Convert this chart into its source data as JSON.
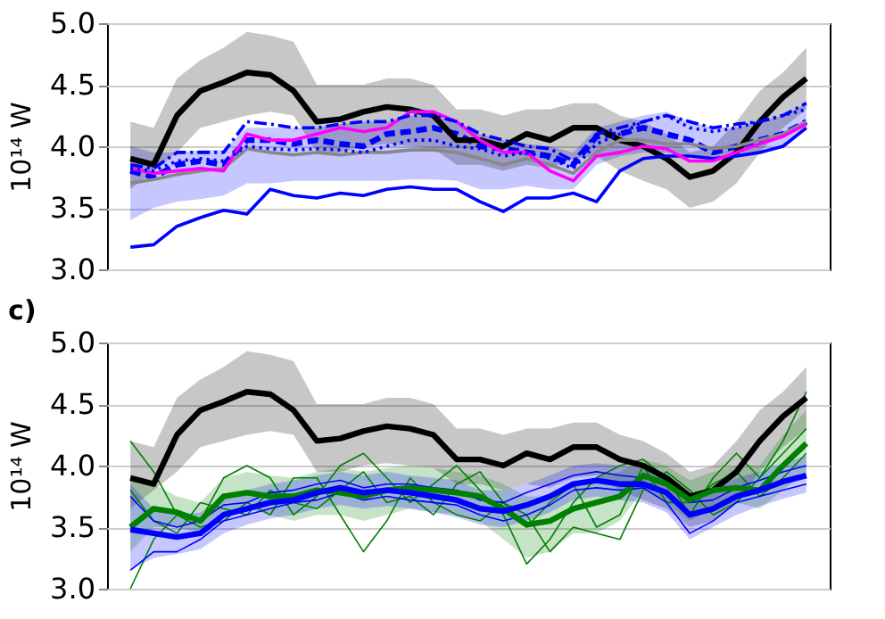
{
  "chart_data": [
    {
      "type": "line",
      "ylabel": "10¹⁴ W",
      "ylim": [
        3.0,
        5.0
      ],
      "yticks": [
        {
          "value": 3.0,
          "label": "3.0"
        },
        {
          "value": 3.5,
          "label": "3.5"
        },
        {
          "value": 4.0,
          "label": "4.0"
        },
        {
          "value": 4.5,
          "label": "4.5"
        },
        {
          "value": 5.0,
          "label": "5.0"
        }
      ],
      "grid": "y",
      "tick_labels": "y",
      "categories": [
        null,
        null,
        null,
        null,
        null,
        null,
        null,
        null,
        null,
        null,
        null,
        null,
        null,
        null,
        null,
        null,
        null,
        null,
        null,
        null,
        null,
        null,
        null,
        null,
        null,
        null,
        null,
        null,
        null,
        null
      ],
      "series": [
        {
          "type": "line",
          "color": "#0000ff",
          "line_style": "dashed",
          "values": [
            3.8,
            3.75,
            3.85,
            3.88,
            3.85,
            4.05,
            4.05,
            4.02,
            4.05,
            4.02,
            4.0,
            4.1,
            4.12,
            4.15,
            4.1,
            4.0,
            3.98,
            3.95,
            3.92,
            3.85,
            4.08,
            4.1,
            4.15,
            4.1,
            4.05,
            3.95,
            4.0,
            4.05,
            4.1,
            4.2
          ],
          "lower": [
            3.4,
            3.5,
            3.55,
            3.57,
            3.6,
            3.7,
            3.7,
            3.72,
            3.72,
            3.72,
            3.72,
            3.72,
            3.73,
            3.73,
            3.72,
            3.65,
            3.65,
            3.68,
            3.65,
            3.65,
            3.85,
            3.92,
            3.95,
            3.95,
            3.92,
            3.9,
            3.92,
            3.95,
            4.0,
            4.15
          ],
          "upper": [
            4.0,
            3.95,
            3.95,
            3.97,
            3.97,
            4.15,
            4.15,
            4.15,
            4.15,
            4.18,
            4.2,
            4.2,
            4.25,
            4.25,
            4.2,
            4.1,
            4.05,
            4.02,
            4.0,
            3.95,
            4.15,
            4.2,
            4.25,
            4.28,
            4.2,
            4.15,
            4.15,
            4.2,
            4.25,
            4.35
          ]
        },
        {
          "type": "line",
          "color": "#000000",
          "line_style": "solid",
          "values": [
            3.9,
            3.85,
            4.25,
            4.45,
            4.52,
            4.6,
            4.58,
            4.45,
            4.2,
            4.22,
            4.28,
            4.32,
            4.3,
            4.25,
            4.05,
            4.05,
            4.0,
            4.1,
            4.05,
            4.15,
            4.15,
            4.05,
            4.0,
            3.9,
            3.75,
            3.8,
            3.95,
            4.2,
            4.4,
            4.55
          ],
          "lower": [
            3.65,
            3.8,
            3.95,
            4.15,
            4.2,
            4.25,
            4.28,
            4.25,
            3.95,
            3.95,
            4.0,
            4.02,
            4.0,
            3.98,
            3.85,
            3.85,
            3.8,
            3.85,
            3.82,
            3.9,
            3.92,
            3.8,
            3.72,
            3.65,
            3.5,
            3.55,
            3.7,
            3.95,
            4.15,
            4.3
          ],
          "upper": [
            4.2,
            4.15,
            4.55,
            4.7,
            4.8,
            4.93,
            4.9,
            4.85,
            4.5,
            4.5,
            4.5,
            4.55,
            4.55,
            4.5,
            4.3,
            4.3,
            4.25,
            4.3,
            4.3,
            4.35,
            4.35,
            4.25,
            4.2,
            4.1,
            3.95,
            4.0,
            4.2,
            4.45,
            4.6,
            4.8
          ]
        },
        {
          "type": "line",
          "color": "#0000ff",
          "line_style": "solid",
          "values": [
            3.18,
            3.2,
            3.35,
            3.42,
            3.48,
            3.45,
            3.65,
            3.6,
            3.58,
            3.62,
            3.6,
            3.65,
            3.67,
            3.65,
            3.65,
            3.55,
            3.47,
            3.58,
            3.58,
            3.62,
            3.55,
            3.8,
            3.9,
            3.92,
            3.92,
            3.9,
            3.92,
            3.95,
            4.0,
            4.15
          ]
        },
        {
          "type": "line",
          "color": "#888888",
          "line_style": "solid",
          "values": [
            3.7,
            3.73,
            3.77,
            3.8,
            3.82,
            3.98,
            3.95,
            3.93,
            3.95,
            3.93,
            3.95,
            3.95,
            3.97,
            3.97,
            3.95,
            3.9,
            3.85,
            3.9,
            3.85,
            3.78,
            3.95,
            4.05,
            4.05,
            4.02,
            4.02,
            3.98,
            4.0,
            4.05,
            4.1,
            4.2
          ]
        },
        {
          "type": "line",
          "color": "#ff00ff",
          "line_style": "solid",
          "values": [
            3.82,
            3.78,
            3.8,
            3.82,
            3.8,
            4.1,
            4.05,
            4.05,
            4.1,
            4.15,
            4.12,
            4.15,
            4.28,
            4.28,
            4.2,
            4.05,
            3.95,
            3.95,
            3.8,
            3.72,
            3.92,
            3.95,
            4.0,
            3.98,
            3.88,
            3.88,
            3.95,
            4.02,
            4.08,
            4.18
          ]
        },
        {
          "type": "line",
          "color": "#0000ff",
          "line_style": "dotted",
          "values": [
            3.82,
            3.8,
            3.88,
            3.9,
            3.88,
            4.0,
            3.98,
            3.97,
            3.98,
            3.97,
            3.95,
            4.0,
            4.05,
            4.05,
            4.0,
            3.98,
            3.92,
            3.95,
            3.9,
            3.82,
            4.02,
            4.1,
            4.2,
            4.25,
            4.15,
            4.12,
            4.15,
            4.2,
            4.25,
            4.3
          ]
        },
        {
          "type": "line",
          "color": "#0000ff",
          "line_style": "dashdot",
          "values": [
            3.85,
            3.82,
            3.95,
            3.95,
            3.95,
            4.2,
            4.18,
            4.15,
            4.15,
            4.18,
            4.2,
            4.2,
            4.25,
            4.25,
            4.2,
            4.1,
            4.05,
            4.0,
            3.98,
            3.88,
            4.1,
            4.15,
            4.2,
            4.25,
            4.2,
            4.15,
            4.18,
            4.2,
            4.25,
            4.35
          ]
        }
      ]
    },
    {
      "type": "line",
      "title": "c)",
      "ylabel": "10¹⁴ W",
      "ylim": [
        3.0,
        5.0
      ],
      "yticks": [
        {
          "value": 3.0,
          "label": "3.0"
        },
        {
          "value": 3.5,
          "label": "3.5"
        },
        {
          "value": 4.0,
          "label": "4.0"
        },
        {
          "value": 4.5,
          "label": "4.5"
        },
        {
          "value": 5.0,
          "label": "5.0"
        }
      ],
      "grid": "y",
      "tick_labels": "y",
      "categories": [
        null,
        null,
        null,
        null,
        null,
        null,
        null,
        null,
        null,
        null,
        null,
        null,
        null,
        null,
        null,
        null,
        null,
        null,
        null,
        null,
        null,
        null,
        null,
        null,
        null,
        null,
        null,
        null,
        null,
        null
      ],
      "series": [
        {
          "type": "line",
          "color": "#000000",
          "line_style": "solid",
          "values": [
            3.9,
            3.85,
            4.25,
            4.45,
            4.52,
            4.6,
            4.58,
            4.45,
            4.2,
            4.22,
            4.28,
            4.32,
            4.3,
            4.25,
            4.05,
            4.05,
            4.0,
            4.1,
            4.05,
            4.15,
            4.15,
            4.05,
            4.0,
            3.9,
            3.75,
            3.8,
            3.95,
            4.2,
            4.4,
            4.55
          ],
          "lower": [
            3.65,
            3.8,
            3.95,
            4.15,
            4.2,
            4.25,
            4.28,
            4.25,
            3.95,
            3.95,
            4.0,
            4.02,
            4.0,
            3.98,
            3.85,
            3.85,
            3.8,
            3.85,
            3.82,
            3.9,
            3.92,
            3.8,
            3.72,
            3.65,
            3.5,
            3.55,
            3.7,
            3.95,
            4.15,
            4.3
          ],
          "upper": [
            4.2,
            4.15,
            4.55,
            4.7,
            4.8,
            4.93,
            4.9,
            4.85,
            4.5,
            4.5,
            4.5,
            4.55,
            4.55,
            4.5,
            4.3,
            4.3,
            4.25,
            4.3,
            4.3,
            4.35,
            4.35,
            4.25,
            4.2,
            4.1,
            3.95,
            4.0,
            4.2,
            4.45,
            4.6,
            4.8
          ]
        },
        {
          "type": "line",
          "color": "#008000",
          "line_style": "solid",
          "values": [
            3.5,
            3.65,
            3.62,
            3.55,
            3.75,
            3.78,
            3.75,
            3.75,
            3.8,
            3.78,
            3.75,
            3.8,
            3.82,
            3.8,
            3.78,
            3.75,
            3.65,
            3.52,
            3.55,
            3.65,
            3.7,
            3.75,
            3.92,
            3.85,
            3.72,
            3.8,
            3.82,
            3.8,
            4.0,
            4.18
          ],
          "lower": [
            3.3,
            3.5,
            3.5,
            3.45,
            3.6,
            3.65,
            3.6,
            3.55,
            3.6,
            3.6,
            3.55,
            3.6,
            3.65,
            3.62,
            3.6,
            3.55,
            3.4,
            3.25,
            3.3,
            3.45,
            3.45,
            3.55,
            3.8,
            3.7,
            3.55,
            3.65,
            3.7,
            3.65,
            3.8,
            3.95
          ],
          "upper": [
            3.9,
            3.85,
            3.75,
            3.7,
            3.9,
            3.95,
            3.92,
            3.9,
            3.95,
            3.98,
            3.95,
            3.98,
            4.0,
            3.98,
            3.95,
            3.92,
            3.85,
            3.75,
            3.75,
            3.85,
            3.9,
            3.95,
            4.05,
            4.0,
            3.88,
            3.95,
            4.0,
            4.0,
            4.25,
            4.45
          ]
        },
        {
          "type": "line",
          "color": "#0000ff",
          "line_style": "solid",
          "values": [
            3.48,
            3.45,
            3.42,
            3.45,
            3.6,
            3.65,
            3.7,
            3.72,
            3.78,
            3.82,
            3.78,
            3.8,
            3.78,
            3.75,
            3.72,
            3.65,
            3.63,
            3.68,
            3.75,
            3.85,
            3.88,
            3.85,
            3.85,
            3.78,
            3.6,
            3.65,
            3.75,
            3.8,
            3.87,
            3.92
          ],
          "lower": [
            3.15,
            3.25,
            3.28,
            3.32,
            3.45,
            3.52,
            3.57,
            3.6,
            3.65,
            3.68,
            3.65,
            3.67,
            3.65,
            3.62,
            3.58,
            3.52,
            3.5,
            3.55,
            3.62,
            3.72,
            3.75,
            3.72,
            3.7,
            3.62,
            3.4,
            3.5,
            3.6,
            3.67,
            3.73,
            3.78
          ],
          "upper": [
            3.85,
            3.65,
            3.6,
            3.62,
            3.75,
            3.8,
            3.85,
            3.88,
            3.92,
            3.95,
            3.92,
            3.95,
            3.92,
            3.9,
            3.88,
            3.8,
            3.8,
            3.85,
            3.92,
            4.0,
            4.02,
            4.0,
            3.98,
            3.92,
            3.75,
            3.8,
            3.9,
            3.95,
            4.02,
            4.08
          ]
        },
        {
          "type": "line",
          "color": "#008000",
          "line_style": "solid",
          "values": [
            4.2,
            3.95,
            3.6,
            3.55,
            3.9,
            4.0,
            3.9,
            3.6,
            3.75,
            4.0,
            4.1,
            3.9,
            3.7,
            3.85,
            4.0,
            3.8,
            3.6,
            3.2,
            3.4,
            3.7,
            3.9,
            4.0,
            4.05,
            3.9,
            3.6,
            3.9,
            4.1,
            3.9,
            4.2,
            4.6
          ]
        },
        {
          "type": "line",
          "color": "#008000",
          "line_style": "solid",
          "values": [
            3.0,
            3.4,
            3.6,
            3.5,
            3.55,
            3.7,
            3.6,
            3.9,
            3.9,
            3.6,
            3.3,
            3.55,
            3.9,
            3.7,
            3.6,
            3.55,
            3.7,
            3.6,
            3.3,
            3.5,
            3.45,
            3.4,
            3.8,
            3.95,
            3.8,
            3.6,
            3.7,
            3.9,
            4.1,
            4.3
          ]
        },
        {
          "type": "line",
          "color": "#008000",
          "line_style": "solid",
          "values": [
            3.8,
            3.55,
            3.45,
            3.7,
            3.65,
            3.6,
            3.8,
            3.7,
            3.65,
            3.8,
            3.95,
            3.7,
            3.75,
            3.6,
            3.85,
            3.95,
            3.7,
            3.5,
            3.7,
            3.85,
            3.5,
            3.6,
            4.0,
            3.7,
            3.7,
            3.85,
            3.95,
            3.75,
            3.9,
            4.1
          ]
        },
        {
          "type": "line",
          "color": "#0000ff",
          "line_style": "solid",
          "values": [
            3.15,
            3.3,
            3.3,
            3.4,
            3.55,
            3.6,
            3.65,
            3.7,
            3.72,
            3.78,
            3.72,
            3.75,
            3.72,
            3.7,
            3.68,
            3.6,
            3.55,
            3.6,
            3.68,
            3.8,
            3.82,
            3.8,
            3.82,
            3.7,
            3.45,
            3.55,
            3.7,
            3.75,
            3.8,
            3.85
          ]
        },
        {
          "type": "line",
          "color": "#0000ff",
          "line_style": "solid",
          "values": [
            3.75,
            3.55,
            3.5,
            3.55,
            3.68,
            3.7,
            3.78,
            3.8,
            3.85,
            3.88,
            3.82,
            3.85,
            3.85,
            3.82,
            3.8,
            3.72,
            3.7,
            3.78,
            3.85,
            3.92,
            3.95,
            3.92,
            3.9,
            3.85,
            3.7,
            3.72,
            3.82,
            3.88,
            3.95,
            4.0
          ]
        }
      ]
    }
  ]
}
